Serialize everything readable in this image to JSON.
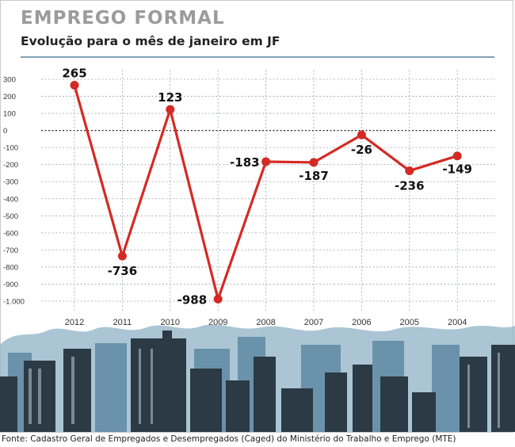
{
  "header": {
    "title": "EMPREGO FORMAL",
    "subtitle": "Evolução para o mês de janeiro em JF"
  },
  "footer": {
    "source": "Fonte: Cadastro Geral de Empregados e Desempregados (Caged) do Ministério do Trabalho e Emprego (MTE)"
  },
  "colors": {
    "line": "#d42a24",
    "grid": "#9fa5a8",
    "title": "#9b9b9b",
    "rule": "#7fa2b6",
    "skyline_dark": "#2b3a45",
    "skyline_light": "#7fa7bf"
  },
  "chart_data": {
    "type": "line",
    "title": "EMPREGO FORMAL",
    "subtitle": "Evolução para o mês de janeiro em JF",
    "categories": [
      "2012",
      "2011",
      "2010",
      "2009",
      "2008",
      "2007",
      "2006",
      "2005",
      "2004"
    ],
    "series": [
      {
        "values": [
          265,
          -736,
          123,
          -988,
          -183,
          -187,
          -26,
          -236,
          -149
        ]
      }
    ],
    "data_labels": [
      "265",
      "-736",
      "123",
      "-988",
      "-183",
      "-187",
      "-26",
      "-236",
      "-149"
    ],
    "ylim": [
      -1000,
      300
    ],
    "yticks": [
      300,
      200,
      100,
      0,
      -100,
      -200,
      -300,
      -400,
      -500,
      -600,
      -700,
      -800,
      -900,
      -1000
    ],
    "ytick_labels": [
      "300",
      "200",
      "100",
      "0",
      "-100",
      "-200",
      "-300",
      "-400",
      "-500",
      "-600",
      "-700",
      "-800",
      "-900",
      "-1.000"
    ],
    "grid": true
  }
}
